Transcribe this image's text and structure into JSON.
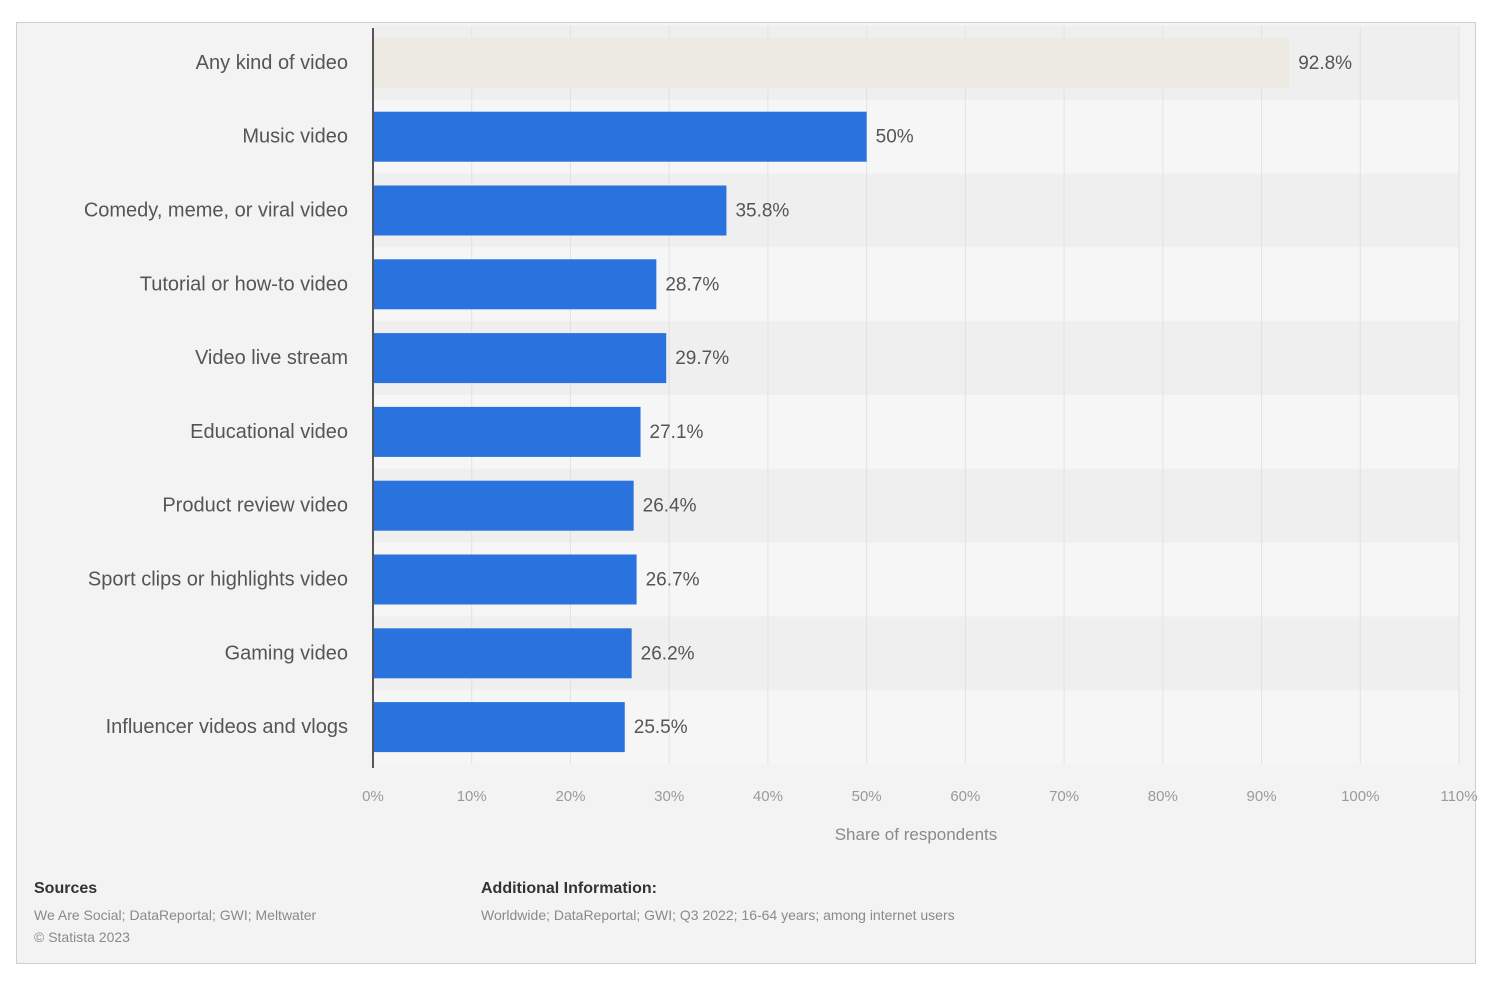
{
  "chart_data": {
    "type": "bar",
    "orientation": "horizontal",
    "categories": [
      "Any kind of video",
      "Music video",
      "Comedy, meme, or viral video",
      "Tutorial or how-to video",
      "Video live stream",
      "Educational video",
      "Product review video",
      "Sport clips or highlights video",
      "Gaming video",
      "Influencer videos and vlogs"
    ],
    "values": [
      92.8,
      50,
      35.8,
      28.7,
      29.7,
      27.1,
      26.4,
      26.7,
      26.2,
      25.5
    ],
    "value_labels": [
      "92.8%",
      "50%",
      "35.8%",
      "28.7%",
      "29.7%",
      "27.1%",
      "26.4%",
      "26.7%",
      "26.2%",
      "25.5%"
    ],
    "highlight_index": 0,
    "bar_color": "#2a72de",
    "highlight_color": "#eceae3",
    "xlim": [
      0,
      110
    ],
    "xticks": [
      0,
      10,
      20,
      30,
      40,
      50,
      60,
      70,
      80,
      90,
      100,
      110
    ],
    "xtick_labels": [
      "0%",
      "10%",
      "20%",
      "30%",
      "40%",
      "50%",
      "60%",
      "70%",
      "80%",
      "90%",
      "100%",
      "110%"
    ],
    "xlabel": "Share of respondents",
    "ylabel": "",
    "title": "",
    "grid": true,
    "legend": false
  },
  "footer": {
    "sources_heading": "Sources",
    "sources_text": "We Are Social; DataReportal; GWI; Meltwater",
    "copyright": "© Statista 2023",
    "additional_heading": "Additional Information:",
    "additional_text": "Worldwide; DataReportal; GWI; Q3 2022; 16-64 years; among internet users"
  }
}
